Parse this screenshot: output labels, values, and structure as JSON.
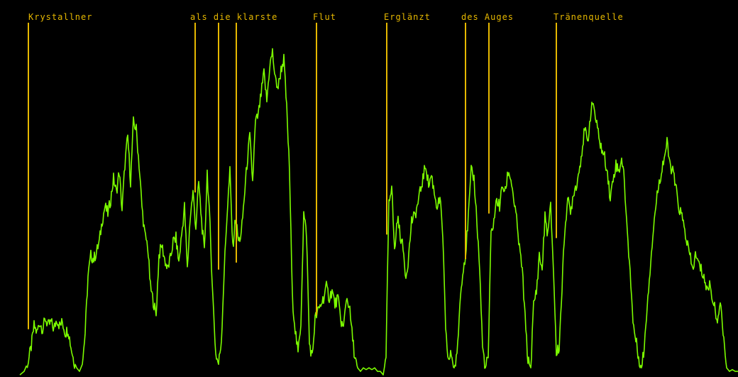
{
  "chart_data": {
    "type": "line",
    "background": "#000000",
    "line_color": "#7CFC00",
    "marker_color": "#E6B800",
    "xlim": [
      0,
      1040
    ],
    "ylim": [
      0,
      1
    ],
    "markers": [
      {
        "text": "Krystallner",
        "x": 40,
        "bottom": 0.13
      },
      {
        "text": "als",
        "x": 275,
        "bottom": 0.52
      },
      {
        "text": "die",
        "x": 308,
        "bottom": 0.3
      },
      {
        "text": "klarste",
        "x": 333,
        "bottom": 0.32
      },
      {
        "text": "Flut",
        "x": 446,
        "bottom": 0.17
      },
      {
        "text": "Erglänzt",
        "x": 545,
        "bottom": 0.4
      },
      {
        "text": "des",
        "x": 656,
        "bottom": 0.33
      },
      {
        "text": "Auges",
        "x": 689,
        "bottom": 0.46
      },
      {
        "text": "Tränenquelle",
        "x": 784,
        "bottom": 0.39
      }
    ],
    "label_x": [
      {
        "text": "Krystallner",
        "x": 40
      },
      {
        "text": "als die klarste",
        "x": 268
      },
      {
        "text": "Flut",
        "x": 441
      },
      {
        "text": "Erglänzt",
        "x": 541
      },
      {
        "text": "des Auges",
        "x": 650
      },
      {
        "text": "Tränenquelle",
        "x": 780
      }
    ],
    "series": [
      {
        "points": [
          [
            28,
            0.0
          ],
          [
            34,
            0.01
          ],
          [
            40,
            0.04
          ],
          [
            44,
            0.08
          ],
          [
            48,
            0.14
          ],
          [
            52,
            0.12
          ],
          [
            56,
            0.15
          ],
          [
            60,
            0.13
          ],
          [
            64,
            0.16
          ],
          [
            68,
            0.14
          ],
          [
            72,
            0.15
          ],
          [
            76,
            0.13
          ],
          [
            80,
            0.16
          ],
          [
            84,
            0.14
          ],
          [
            88,
            0.15
          ],
          [
            92,
            0.12
          ],
          [
            96,
            0.13
          ],
          [
            100,
            0.08
          ],
          [
            104,
            0.04
          ],
          [
            108,
            0.02
          ],
          [
            112,
            0.01
          ],
          [
            116,
            0.03
          ],
          [
            120,
            0.12
          ],
          [
            124,
            0.28
          ],
          [
            128,
            0.34
          ],
          [
            132,
            0.33
          ],
          [
            136,
            0.35
          ],
          [
            140,
            0.38
          ],
          [
            144,
            0.44
          ],
          [
            148,
            0.48
          ],
          [
            152,
            0.46
          ],
          [
            156,
            0.5
          ],
          [
            160,
            0.56
          ],
          [
            164,
            0.52
          ],
          [
            168,
            0.58
          ],
          [
            172,
            0.47
          ],
          [
            176,
            0.6
          ],
          [
            180,
            0.68
          ],
          [
            184,
            0.55
          ],
          [
            188,
            0.72
          ],
          [
            192,
            0.7
          ],
          [
            196,
            0.6
          ],
          [
            200,
            0.48
          ],
          [
            204,
            0.4
          ],
          [
            208,
            0.37
          ],
          [
            212,
            0.25
          ],
          [
            216,
            0.21
          ],
          [
            220,
            0.17
          ],
          [
            224,
            0.34
          ],
          [
            228,
            0.37
          ],
          [
            232,
            0.33
          ],
          [
            236,
            0.3
          ],
          [
            240,
            0.33
          ],
          [
            244,
            0.38
          ],
          [
            248,
            0.39
          ],
          [
            252,
            0.32
          ],
          [
            256,
            0.4
          ],
          [
            260,
            0.48
          ],
          [
            264,
            0.3
          ],
          [
            268,
            0.45
          ],
          [
            272,
            0.52
          ],
          [
            276,
            0.42
          ],
          [
            280,
            0.55
          ],
          [
            284,
            0.44
          ],
          [
            288,
            0.35
          ],
          [
            292,
            0.58
          ],
          [
            296,
            0.42
          ],
          [
            300,
            0.22
          ],
          [
            304,
            0.06
          ],
          [
            308,
            0.03
          ],
          [
            312,
            0.1
          ],
          [
            316,
            0.3
          ],
          [
            320,
            0.46
          ],
          [
            324,
            0.58
          ],
          [
            328,
            0.36
          ],
          [
            332,
            0.45
          ],
          [
            336,
            0.38
          ],
          [
            340,
            0.4
          ],
          [
            344,
            0.5
          ],
          [
            348,
            0.6
          ],
          [
            352,
            0.68
          ],
          [
            356,
            0.55
          ],
          [
            360,
            0.72
          ],
          [
            364,
            0.74
          ],
          [
            368,
            0.8
          ],
          [
            372,
            0.86
          ],
          [
            376,
            0.78
          ],
          [
            380,
            0.88
          ],
          [
            384,
            0.92
          ],
          [
            388,
            0.84
          ],
          [
            392,
            0.82
          ],
          [
            396,
            0.87
          ],
          [
            400,
            0.9
          ],
          [
            404,
            0.76
          ],
          [
            408,
            0.58
          ],
          [
            412,
            0.22
          ],
          [
            416,
            0.13
          ],
          [
            420,
            0.06
          ],
          [
            424,
            0.15
          ],
          [
            428,
            0.46
          ],
          [
            432,
            0.4
          ],
          [
            436,
            0.09
          ],
          [
            440,
            0.05
          ],
          [
            444,
            0.16
          ],
          [
            448,
            0.18
          ],
          [
            452,
            0.2
          ],
          [
            456,
            0.22
          ],
          [
            460,
            0.25
          ],
          [
            464,
            0.22
          ],
          [
            468,
            0.24
          ],
          [
            472,
            0.2
          ],
          [
            476,
            0.22
          ],
          [
            480,
            0.16
          ],
          [
            484,
            0.13
          ],
          [
            488,
            0.22
          ],
          [
            492,
            0.2
          ],
          [
            496,
            0.12
          ],
          [
            500,
            0.05
          ],
          [
            504,
            0.02
          ],
          [
            508,
            0.01
          ],
          [
            512,
            0.02
          ],
          [
            516,
            0.015
          ],
          [
            520,
            0.02
          ],
          [
            524,
            0.015
          ],
          [
            528,
            0.02
          ],
          [
            532,
            0.01
          ],
          [
            536,
            0.01
          ],
          [
            540,
            0.0
          ],
          [
            544,
            0.05
          ],
          [
            548,
            0.5
          ],
          [
            552,
            0.54
          ],
          [
            556,
            0.35
          ],
          [
            560,
            0.45
          ],
          [
            564,
            0.4
          ],
          [
            568,
            0.36
          ],
          [
            572,
            0.28
          ],
          [
            576,
            0.34
          ],
          [
            580,
            0.44
          ],
          [
            584,
            0.45
          ],
          [
            588,
            0.48
          ],
          [
            592,
            0.52
          ],
          [
            596,
            0.56
          ],
          [
            600,
            0.6
          ],
          [
            604,
            0.54
          ],
          [
            608,
            0.57
          ],
          [
            612,
            0.52
          ],
          [
            616,
            0.48
          ],
          [
            620,
            0.5
          ],
          [
            624,
            0.4
          ],
          [
            628,
            0.12
          ],
          [
            632,
            0.04
          ],
          [
            636,
            0.06
          ],
          [
            640,
            0.02
          ],
          [
            644,
            0.05
          ],
          [
            648,
            0.2
          ],
          [
            652,
            0.3
          ],
          [
            656,
            0.34
          ],
          [
            660,
            0.45
          ],
          [
            664,
            0.58
          ],
          [
            668,
            0.56
          ],
          [
            672,
            0.44
          ],
          [
            676,
            0.3
          ],
          [
            680,
            0.08
          ],
          [
            684,
            0.02
          ],
          [
            688,
            0.05
          ],
          [
            692,
            0.4
          ],
          [
            696,
            0.44
          ],
          [
            700,
            0.5
          ],
          [
            704,
            0.48
          ],
          [
            708,
            0.54
          ],
          [
            712,
            0.52
          ],
          [
            716,
            0.58
          ],
          [
            720,
            0.56
          ],
          [
            724,
            0.5
          ],
          [
            728,
            0.44
          ],
          [
            732,
            0.36
          ],
          [
            736,
            0.3
          ],
          [
            740,
            0.16
          ],
          [
            744,
            0.04
          ],
          [
            748,
            0.02
          ],
          [
            752,
            0.2
          ],
          [
            756,
            0.24
          ],
          [
            760,
            0.34
          ],
          [
            764,
            0.3
          ],
          [
            768,
            0.45
          ],
          [
            772,
            0.4
          ],
          [
            776,
            0.48
          ],
          [
            780,
            0.3
          ],
          [
            784,
            0.06
          ],
          [
            788,
            0.08
          ],
          [
            792,
            0.25
          ],
          [
            796,
            0.42
          ],
          [
            800,
            0.5
          ],
          [
            804,
            0.46
          ],
          [
            808,
            0.52
          ],
          [
            812,
            0.54
          ],
          [
            816,
            0.58
          ],
          [
            820,
            0.64
          ],
          [
            824,
            0.7
          ],
          [
            828,
            0.66
          ],
          [
            832,
            0.74
          ],
          [
            836,
            0.78
          ],
          [
            840,
            0.72
          ],
          [
            844,
            0.68
          ],
          [
            848,
            0.64
          ],
          [
            852,
            0.62
          ],
          [
            856,
            0.58
          ],
          [
            860,
            0.5
          ],
          [
            864,
            0.56
          ],
          [
            868,
            0.6
          ],
          [
            872,
            0.58
          ],
          [
            876,
            0.62
          ],
          [
            880,
            0.55
          ],
          [
            884,
            0.4
          ],
          [
            888,
            0.3
          ],
          [
            892,
            0.15
          ],
          [
            896,
            0.1
          ],
          [
            900,
            0.05
          ],
          [
            904,
            0.02
          ],
          [
            908,
            0.08
          ],
          [
            912,
            0.2
          ],
          [
            916,
            0.3
          ],
          [
            920,
            0.4
          ],
          [
            924,
            0.48
          ],
          [
            928,
            0.54
          ],
          [
            932,
            0.58
          ],
          [
            936,
            0.62
          ],
          [
            940,
            0.66
          ],
          [
            944,
            0.6
          ],
          [
            948,
            0.58
          ],
          [
            952,
            0.54
          ],
          [
            956,
            0.48
          ],
          [
            960,
            0.46
          ],
          [
            964,
            0.42
          ],
          [
            968,
            0.38
          ],
          [
            972,
            0.34
          ],
          [
            976,
            0.3
          ],
          [
            980,
            0.34
          ],
          [
            984,
            0.32
          ],
          [
            988,
            0.3
          ],
          [
            992,
            0.28
          ],
          [
            996,
            0.24
          ],
          [
            1000,
            0.26
          ],
          [
            1004,
            0.22
          ],
          [
            1008,
            0.18
          ],
          [
            1012,
            0.16
          ],
          [
            1016,
            0.2
          ],
          [
            1020,
            0.1
          ],
          [
            1024,
            0.02
          ],
          [
            1028,
            0.01
          ],
          [
            1032,
            0.015
          ],
          [
            1036,
            0.01
          ],
          [
            1040,
            0.01
          ]
        ]
      }
    ]
  }
}
